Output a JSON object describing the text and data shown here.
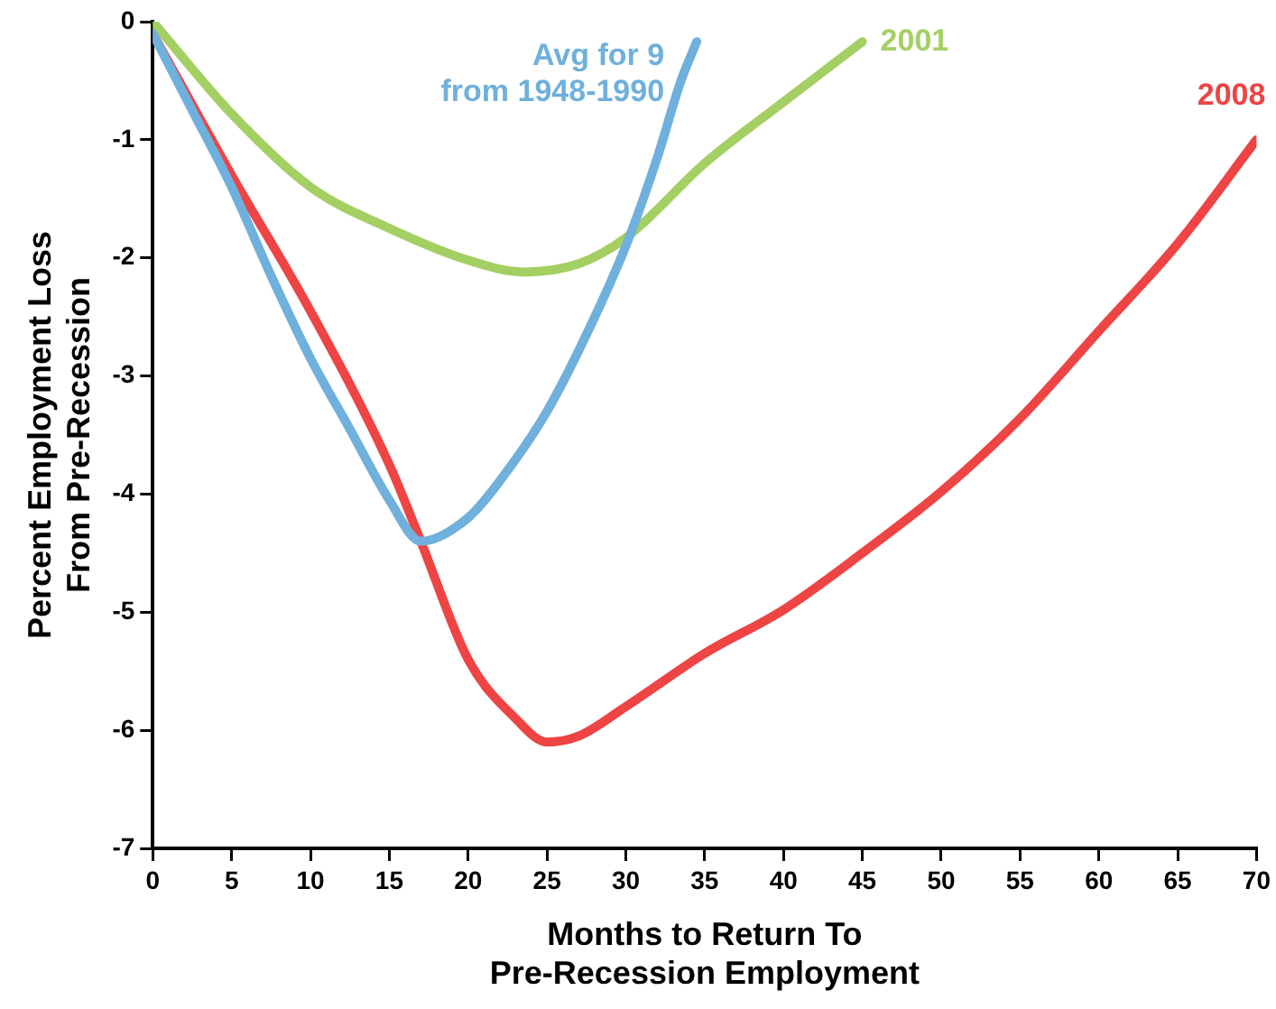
{
  "chart_data": {
    "type": "line",
    "xlabel": "Months to Return To\nPre-Recession Employment",
    "ylabel": "Percent Employment Loss\nFrom Pre-Recession",
    "xlim": [
      0,
      70
    ],
    "xticks": [
      0,
      5,
      10,
      15,
      20,
      25,
      30,
      35,
      40,
      45,
      50,
      55,
      60,
      65,
      70
    ],
    "ylim": [
      -7,
      0
    ],
    "yticks": [
      -7,
      -6,
      -5,
      -4,
      -3,
      -2,
      -1,
      0
    ],
    "grid": false,
    "legend": false,
    "marker": "none",
    "line_style": "solid",
    "series": [
      {
        "name": "Avg for 9\nfrom 1948-1990",
        "color": "#6fb0dc",
        "x": [
          0,
          2.5,
          5,
          7.5,
          10,
          12.5,
          15,
          17,
          20,
          22.5,
          25,
          27.5,
          30,
          32,
          33.5,
          34.5
        ],
        "values": [
          -0.1,
          -0.75,
          -1.4,
          -2.15,
          -2.85,
          -3.45,
          -4.05,
          -4.4,
          -4.2,
          -3.8,
          -3.3,
          -2.65,
          -1.9,
          -1.15,
          -0.5,
          -0.17
        ]
      },
      {
        "name": "2001",
        "color": "#a4cf63",
        "x": [
          0,
          5,
          10,
          15,
          20,
          23.5,
          27,
          30,
          35,
          40,
          45
        ],
        "values": [
          0,
          -0.78,
          -1.4,
          -1.75,
          -2.02,
          -2.12,
          -2.05,
          -1.83,
          -1.2,
          -0.68,
          -0.17
        ]
      },
      {
        "name": "2008",
        "color": "#ee4444",
        "x": [
          0,
          5,
          10,
          15,
          17,
          20,
          23,
          25,
          27,
          30,
          35,
          40,
          45,
          50,
          55,
          60,
          65,
          70
        ],
        "values": [
          -0.1,
          -1.3,
          -2.45,
          -3.75,
          -4.4,
          -5.4,
          -5.9,
          -6.1,
          -6.05,
          -5.8,
          -5.35,
          -4.98,
          -4.5,
          -3.98,
          -3.36,
          -2.62,
          -1.88,
          -1.0
        ]
      }
    ]
  }
}
